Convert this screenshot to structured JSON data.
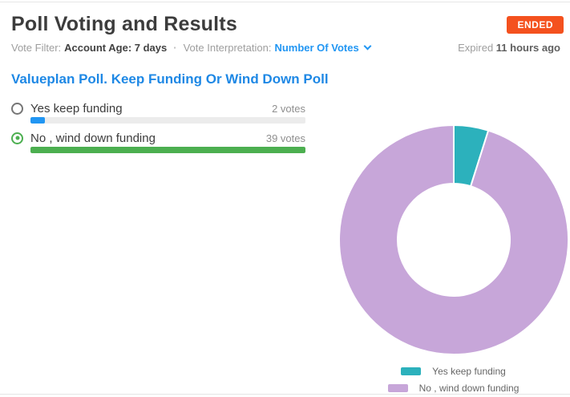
{
  "header": {
    "title": "Poll Voting and Results",
    "status_badge": "ENDED",
    "meta": {
      "vote_filter_label": "Vote Filter:",
      "vote_filter_value": "Account Age: 7 days",
      "separator": "·",
      "vote_interpretation_label": "Vote Interpretation:",
      "vote_interpretation_value": "Number Of Votes",
      "expired_label": "Expired",
      "expired_value": "11 hours ago"
    }
  },
  "poll": {
    "title": "Valueplan Poll. Keep Funding Or Wind Down Poll",
    "options": [
      {
        "label": "Yes keep funding",
        "votes": 2,
        "votes_label": "2 votes",
        "selected": false,
        "bar_color": "#2196f3"
      },
      {
        "label": "No , wind down funding",
        "votes": 39,
        "votes_label": "39 votes",
        "selected": true,
        "bar_color": "#4caf50"
      }
    ]
  },
  "chart_data": {
    "type": "pie",
    "subtype": "donut",
    "labels": [
      "Yes keep funding",
      "No , wind down funding"
    ],
    "values": [
      2,
      39
    ],
    "colors": [
      "#2cb1bc",
      "#c7a6d9"
    ],
    "start_angle_deg": 0,
    "direction": "clockwise",
    "legend_position": "bottom-center",
    "slice_gap_color": "#ffffff"
  },
  "colors": {
    "badge_bg": "#f4511e",
    "link_blue": "#2196f3",
    "poll_title_blue": "#1e88e5",
    "selected_green": "#4caf50",
    "bar_track": "#ececec"
  }
}
